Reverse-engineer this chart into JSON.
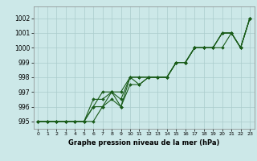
{
  "background_color": "#cce8e8",
  "grid_color": "#aacccc",
  "line_color": "#1a5c1a",
  "xlabel": "Graphe pression niveau de la mer (hPa)",
  "xlim": [
    -0.5,
    23.5
  ],
  "ylim": [
    994.5,
    1002.8
  ],
  "yticks": [
    995,
    996,
    997,
    998,
    999,
    1000,
    1001,
    1002
  ],
  "xticks": [
    0,
    1,
    2,
    3,
    4,
    5,
    6,
    7,
    8,
    9,
    10,
    11,
    12,
    13,
    14,
    15,
    16,
    17,
    18,
    19,
    20,
    21,
    22,
    23
  ],
  "series": [
    [
      995.0,
      995.0,
      995.0,
      995.0,
      995.0,
      995.0,
      995.0,
      996.0,
      997.0,
      996.0,
      998.0,
      998.0,
      998.0,
      998.0,
      998.0,
      999.0,
      999.0,
      1000.0,
      1000.0,
      1000.0,
      1000.0,
      1001.0,
      1000.0,
      1002.0
    ],
    [
      995.0,
      995.0,
      995.0,
      995.0,
      995.0,
      995.0,
      996.0,
      997.0,
      997.0,
      997.0,
      998.0,
      998.0,
      998.0,
      998.0,
      998.0,
      999.0,
      999.0,
      1000.0,
      1000.0,
      1000.0,
      1001.0,
      1001.0,
      1000.0,
      1002.0
    ],
    [
      995.0,
      995.0,
      995.0,
      995.0,
      995.0,
      995.0,
      996.0,
      996.0,
      996.5,
      996.0,
      997.5,
      997.5,
      998.0,
      998.0,
      998.0,
      999.0,
      999.0,
      1000.0,
      1000.0,
      1000.0,
      1001.0,
      1001.0,
      1000.0,
      1002.0
    ],
    [
      995.0,
      995.0,
      995.0,
      995.0,
      995.0,
      995.0,
      996.5,
      996.5,
      997.0,
      996.5,
      998.0,
      997.5,
      998.0,
      998.0,
      998.0,
      999.0,
      999.0,
      1000.0,
      1000.0,
      1000.0,
      1001.0,
      1001.0,
      1000.0,
      1002.0
    ]
  ]
}
